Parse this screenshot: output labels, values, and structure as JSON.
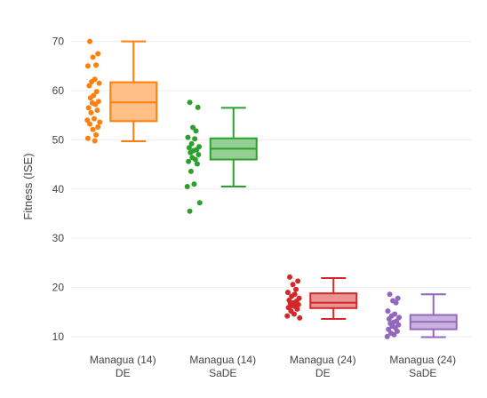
{
  "chart_data": {
    "type": "box",
    "title": "",
    "xlabel": "",
    "ylabel": "Fitness (ISE)",
    "ylim": [
      8,
      73
    ],
    "yticks": [
      10,
      20,
      30,
      40,
      50,
      60,
      70
    ],
    "grid": true,
    "legend": "none",
    "categories": [
      {
        "line1": "Managua (14)",
        "line2": "DE"
      },
      {
        "line1": "Managua (14)",
        "line2": "SaDE"
      },
      {
        "line1": "Managua (24)",
        "line2": "DE"
      },
      {
        "line1": "Managua (24)",
        "line2": "SaDE"
      }
    ],
    "series": [
      {
        "color": "#ff7f0e",
        "fill": "#ffbf87",
        "box": {
          "min": 49.7,
          "q1": 53.8,
          "median": 57.6,
          "q3": 61.7,
          "max": 70.0
        },
        "points": [
          70.0,
          67.5,
          66.8,
          65.2,
          65.0,
          62.3,
          61.8,
          61.5,
          61.0,
          59.8,
          59.0,
          58.5,
          57.8,
          57.5,
          57.2,
          56.5,
          56.0,
          55.5,
          54.3,
          54.0,
          53.6,
          53.2,
          52.6,
          52.1,
          51.0,
          50.3,
          49.8
        ]
      },
      {
        "color": "#2ca02c",
        "fill": "#95cf95",
        "box": {
          "min": 40.5,
          "q1": 46.0,
          "median": 48.2,
          "q3": 50.3,
          "max": 56.5
        },
        "points": [
          57.6,
          56.6,
          52.5,
          51.8,
          50.5,
          50.2,
          49.2,
          48.6,
          48.4,
          48.0,
          47.8,
          47.4,
          47.0,
          46.4,
          46.0,
          45.6,
          45.1,
          43.6,
          41.0,
          40.5,
          37.2,
          35.5
        ]
      },
      {
        "color": "#d62728",
        "fill": "#ea9393",
        "box": {
          "min": 13.6,
          "q1": 15.8,
          "median": 16.9,
          "q3": 18.8,
          "max": 21.9
        },
        "points": [
          22.1,
          21.3,
          20.6,
          19.6,
          19.0,
          18.6,
          18.2,
          17.8,
          17.4,
          17.2,
          16.9,
          16.7,
          16.5,
          16.3,
          16.1,
          15.9,
          15.6,
          15.2,
          14.6,
          14.2,
          13.8
        ]
      },
      {
        "color": "#9467bd",
        "fill": "#c9b3de",
        "box": {
          "min": 9.9,
          "q1": 11.5,
          "median": 13.0,
          "q3": 14.4,
          "max": 18.6
        },
        "points": [
          18.6,
          17.8,
          17.3,
          16.9,
          15.2,
          14.6,
          14.2,
          13.9,
          13.6,
          13.2,
          12.9,
          12.7,
          12.4,
          12.1,
          11.8,
          11.5,
          11.1,
          10.7,
          10.4,
          10.0
        ]
      }
    ]
  }
}
